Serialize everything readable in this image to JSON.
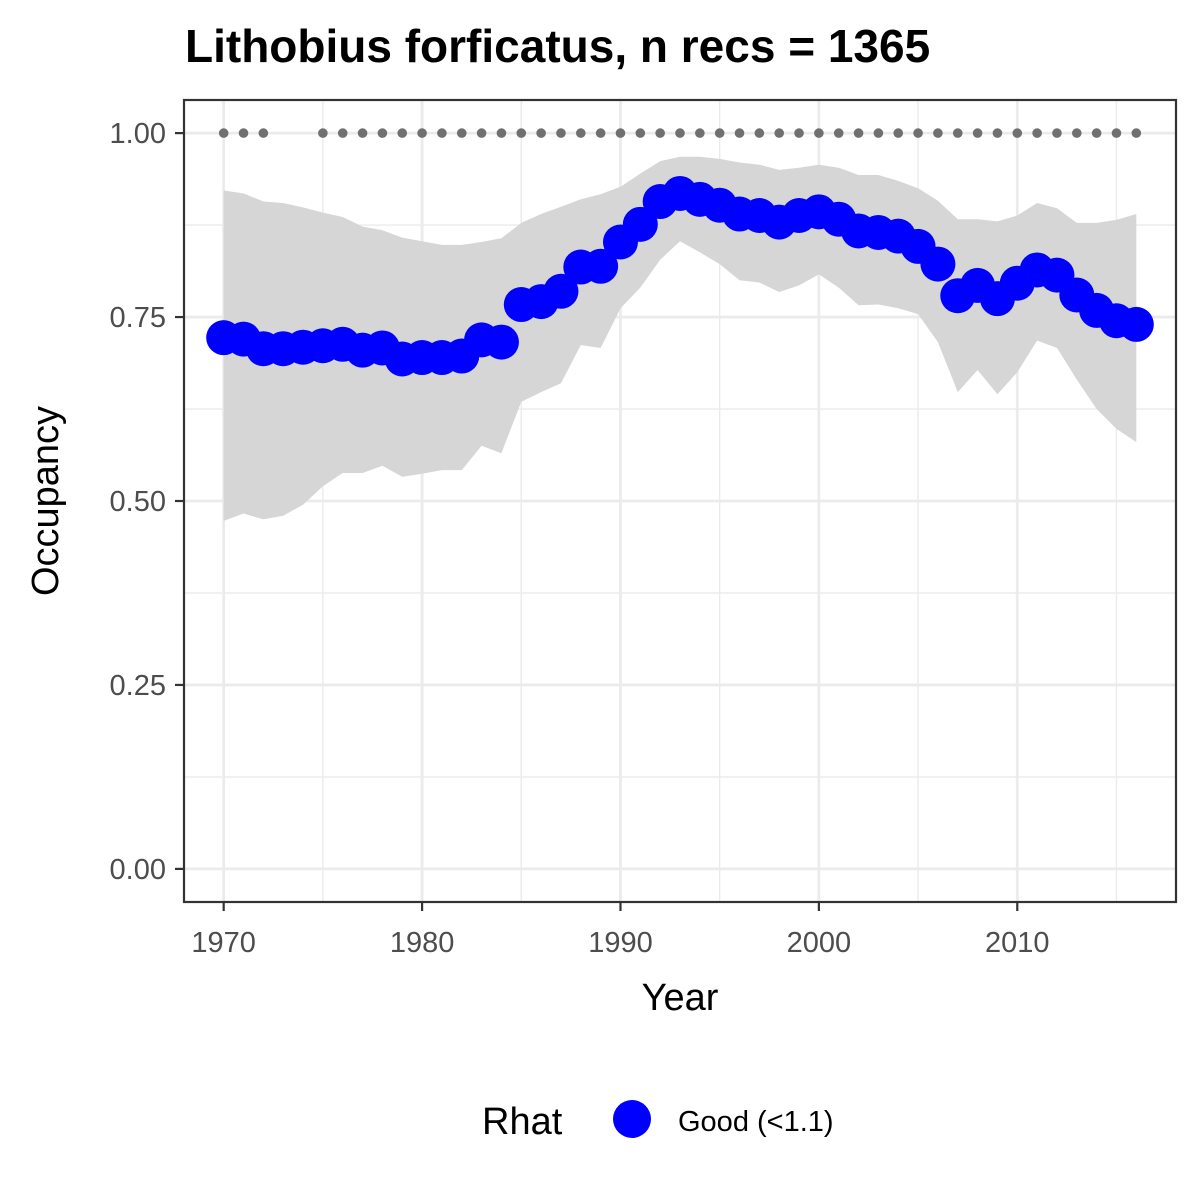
{
  "chart_data": {
    "type": "line",
    "title": "Lithobius forficatus, n recs = 1365",
    "xlabel": "Year",
    "ylabel": "Occupancy",
    "xlim": [
      1968,
      2018
    ],
    "ylim": [
      -0.045,
      1.045
    ],
    "x_ticks": [
      1970,
      1980,
      1990,
      2000,
      2010
    ],
    "x_tick_labels": [
      "1970",
      "1980",
      "1990",
      "2000",
      "2010"
    ],
    "y_ticks": [
      0,
      0.25,
      0.5,
      0.75,
      1.0
    ],
    "y_tick_labels": [
      "0.00",
      "0.25",
      "0.50",
      "0.75",
      "1.00"
    ],
    "grid": true,
    "legend": {
      "title": "Rhat",
      "position": "bottom",
      "entries": [
        {
          "label": "Good (<1.1)",
          "color": "#0000ff"
        }
      ]
    },
    "colors": {
      "points": "#0000ff",
      "ribbon": "#d6d6d6",
      "record_dots": "#707070",
      "grid": "#ebebeb",
      "panel_border": "#333333"
    },
    "years": [
      1970,
      1971,
      1972,
      1973,
      1974,
      1975,
      1976,
      1977,
      1978,
      1979,
      1980,
      1981,
      1982,
      1983,
      1984,
      1985,
      1986,
      1987,
      1988,
      1989,
      1990,
      1991,
      1992,
      1993,
      1994,
      1995,
      1996,
      1997,
      1998,
      1999,
      2000,
      2001,
      2002,
      2003,
      2004,
      2005,
      2006,
      2007,
      2008,
      2009,
      2010,
      2011,
      2012,
      2013,
      2014,
      2015,
      2016
    ],
    "occupancy": [
      0.722,
      0.72,
      0.707,
      0.707,
      0.709,
      0.711,
      0.713,
      0.705,
      0.708,
      0.693,
      0.695,
      0.695,
      0.697,
      0.719,
      0.716,
      0.767,
      0.771,
      0.785,
      0.818,
      0.819,
      0.852,
      0.876,
      0.907,
      0.918,
      0.91,
      0.902,
      0.89,
      0.888,
      0.879,
      0.888,
      0.893,
      0.883,
      0.867,
      0.865,
      0.86,
      0.846,
      0.822,
      0.779,
      0.793,
      0.775,
      0.796,
      0.814,
      0.807,
      0.78,
      0.759,
      0.745,
      0.74
    ],
    "lower": [
      0.473,
      0.483,
      0.475,
      0.48,
      0.495,
      0.52,
      0.538,
      0.538,
      0.548,
      0.533,
      0.537,
      0.542,
      0.542,
      0.575,
      0.565,
      0.635,
      0.648,
      0.66,
      0.712,
      0.708,
      0.762,
      0.79,
      0.828,
      0.853,
      0.838,
      0.822,
      0.8,
      0.797,
      0.784,
      0.793,
      0.808,
      0.79,
      0.766,
      0.767,
      0.762,
      0.754,
      0.716,
      0.648,
      0.678,
      0.645,
      0.675,
      0.718,
      0.708,
      0.665,
      0.625,
      0.598,
      0.58
    ],
    "upper": [
      0.922,
      0.918,
      0.907,
      0.905,
      0.899,
      0.892,
      0.886,
      0.873,
      0.868,
      0.858,
      0.853,
      0.848,
      0.848,
      0.852,
      0.857,
      0.878,
      0.89,
      0.9,
      0.91,
      0.917,
      0.927,
      0.945,
      0.962,
      0.968,
      0.968,
      0.965,
      0.96,
      0.957,
      0.95,
      0.953,
      0.957,
      0.953,
      0.943,
      0.943,
      0.935,
      0.925,
      0.908,
      0.883,
      0.883,
      0.88,
      0.888,
      0.905,
      0.898,
      0.878,
      0.878,
      0.882,
      0.89
    ],
    "record_years": [
      1970,
      1971,
      1972,
      1975,
      1976,
      1977,
      1978,
      1979,
      1980,
      1981,
      1982,
      1983,
      1984,
      1985,
      1986,
      1987,
      1988,
      1989,
      1990,
      1991,
      1992,
      1993,
      1994,
      1995,
      1996,
      1997,
      1998,
      1999,
      2000,
      2001,
      2002,
      2003,
      2004,
      2005,
      2006,
      2007,
      2008,
      2009,
      2010,
      2011,
      2012,
      2013,
      2014,
      2015,
      2016
    ],
    "record_value": 1.0
  }
}
